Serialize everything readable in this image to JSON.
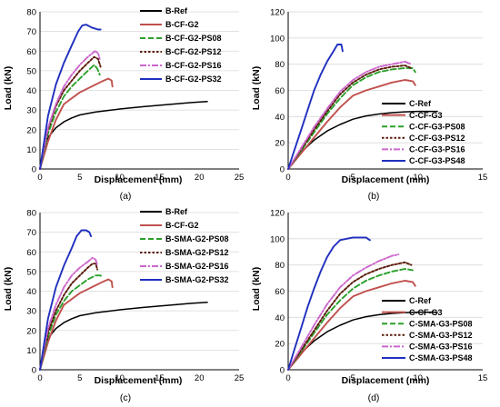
{
  "colors": {
    "black": "#000000",
    "red": "#c0504d",
    "green": "#2ca02c",
    "darkred": "#5a1a0a",
    "pink": "#cc66cc",
    "blue": "#1f2fbf"
  },
  "chart_data": [
    {
      "type": "line",
      "caption": "(a)",
      "xlabel": "Displacement (mm)",
      "ylabel": "Load (kN)",
      "xlim": [
        0,
        25
      ],
      "ylim": [
        0,
        80
      ],
      "xticks": [
        0,
        5,
        10,
        15,
        20,
        25
      ],
      "yticks": [
        0,
        10,
        20,
        30,
        40,
        50,
        60,
        70,
        80
      ],
      "legend_position": "top-right",
      "series": [
        {
          "name": "B-Ref",
          "color": "black",
          "dash": "solid",
          "x": [
            0,
            0.5,
            1,
            2,
            3,
            4,
            5,
            7,
            10,
            13,
            16,
            19,
            21
          ],
          "y": [
            0,
            10,
            16,
            21,
            24,
            26,
            27.5,
            29,
            30.5,
            31.7,
            32.8,
            33.8,
            34.3
          ]
        },
        {
          "name": "B-CF-G2",
          "color": "red",
          "dash": "solid",
          "x": [
            0,
            1,
            2,
            3,
            4,
            5,
            6,
            7,
            8,
            8.6,
            9,
            9.1
          ],
          "y": [
            0,
            14,
            25,
            33,
            36,
            39,
            41,
            43,
            45,
            46,
            45,
            42
          ]
        },
        {
          "name": "B-CF-G2-PS08",
          "color": "green",
          "dash": "dashed",
          "x": [
            0,
            1,
            2,
            3,
            4,
            5,
            6,
            6.8,
            7.2,
            7.5
          ],
          "y": [
            0,
            18,
            29,
            37,
            42,
            46,
            50,
            53,
            51,
            48
          ]
        },
        {
          "name": "B-CF-G2-PS12",
          "color": "darkred",
          "dash": "dotted",
          "x": [
            0,
            1,
            2,
            3,
            4,
            5,
            6,
            6.8,
            7.3,
            7.6
          ],
          "y": [
            0,
            20,
            32,
            40,
            45,
            50,
            54,
            57,
            56,
            52
          ]
        },
        {
          "name": "B-CF-G2-PS16",
          "color": "pink",
          "dash": "dashdot",
          "x": [
            0,
            1,
            2,
            3,
            4,
            5,
            6,
            6.9,
            7.3,
            7.5
          ],
          "y": [
            0,
            21,
            33,
            42,
            48,
            53,
            57,
            60,
            59,
            56
          ]
        },
        {
          "name": "B-CF-G2-PS32",
          "color": "blue",
          "dash": "solid",
          "x": [
            0,
            1,
            2,
            3,
            4,
            4.8,
            5.3,
            5.8,
            6.5,
            7.3,
            7.6
          ],
          "y": [
            0,
            27,
            43,
            54,
            63,
            70,
            73,
            73.5,
            72,
            71,
            71
          ]
        }
      ]
    },
    {
      "type": "line",
      "caption": "(b)",
      "xlabel": "Displacement (mm)",
      "ylabel": "Load (kN)",
      "xlim": [
        0,
        15
      ],
      "ylim": [
        0,
        120
      ],
      "xticks": [
        0,
        5,
        10,
        15
      ],
      "yticks": [
        0,
        20,
        40,
        60,
        80,
        100,
        120
      ],
      "legend_position": "bottom-right",
      "series": [
        {
          "name": "C-Ref",
          "color": "black",
          "dash": "solid",
          "x": [
            0,
            1,
            2,
            3,
            4,
            5,
            6,
            7,
            8,
            9,
            10,
            11.5
          ],
          "y": [
            0,
            13,
            22,
            29,
            34,
            38,
            40.5,
            42,
            43,
            43.6,
            44,
            44
          ]
        },
        {
          "name": "C-CF-G3",
          "color": "red",
          "dash": "solid",
          "x": [
            0,
            1,
            2,
            3,
            4,
            5,
            6,
            7,
            8,
            9,
            9.6,
            9.8
          ],
          "y": [
            0,
            12,
            24,
            36,
            47,
            56,
            60,
            63,
            66,
            68,
            67,
            64
          ]
        },
        {
          "name": "C-CF-G3-PS08",
          "color": "green",
          "dash": "dashed",
          "x": [
            0,
            1,
            2,
            3,
            4,
            5,
            6,
            7,
            8,
            9,
            9.6,
            9.8
          ],
          "y": [
            0,
            14,
            28,
            42,
            54,
            64,
            70,
            74,
            76,
            77,
            77,
            74
          ]
        },
        {
          "name": "C-CF-G3-PS12",
          "color": "darkred",
          "dash": "dotted",
          "x": [
            0,
            1,
            2,
            3,
            4,
            5,
            6,
            7,
            8,
            9,
            9.5
          ],
          "y": [
            0,
            15,
            30,
            44,
            57,
            66,
            72,
            76,
            78,
            79,
            77
          ]
        },
        {
          "name": "C-CF-G3-PS16",
          "color": "pink",
          "dash": "dashdot",
          "x": [
            0,
            1,
            2,
            3,
            4,
            5,
            6,
            7,
            8,
            9,
            9.5
          ],
          "y": [
            0,
            16,
            32,
            46,
            59,
            68,
            74,
            78,
            80,
            82,
            80
          ]
        },
        {
          "name": "C-CF-G3-PS48",
          "color": "blue",
          "dash": "solid",
          "x": [
            0,
            0.5,
            1,
            1.5,
            2,
            2.5,
            3,
            3.5,
            3.8,
            4.1,
            4.2
          ],
          "y": [
            0,
            15,
            30,
            45,
            60,
            72,
            82,
            90,
            95,
            95,
            90
          ]
        }
      ]
    },
    {
      "type": "line",
      "caption": "(c)",
      "xlabel": "Displacement (mm)",
      "ylabel": "Load (kN)",
      "xlim": [
        0,
        25
      ],
      "ylim": [
        0,
        80
      ],
      "xticks": [
        0,
        5,
        10,
        15,
        20,
        25
      ],
      "yticks": [
        0,
        10,
        20,
        30,
        40,
        50,
        60,
        70,
        80
      ],
      "legend_position": "top-right",
      "series": [
        {
          "name": "B-Ref",
          "color": "black",
          "dash": "solid",
          "x": [
            0,
            0.5,
            1,
            2,
            3,
            4,
            5,
            7,
            10,
            13,
            16,
            19,
            21
          ],
          "y": [
            0,
            10,
            16,
            21,
            24,
            26,
            27.5,
            29,
            30.5,
            31.7,
            32.8,
            33.8,
            34.3
          ]
        },
        {
          "name": "B-CF-G2",
          "color": "red",
          "dash": "solid",
          "x": [
            0,
            1,
            2,
            3,
            4,
            5,
            6,
            7,
            8,
            8.6,
            9,
            9.1
          ],
          "y": [
            0,
            14,
            25,
            33,
            36,
            39,
            41,
            43,
            45,
            46,
            45,
            42
          ]
        },
        {
          "name": "B-SMA-G2-PS08",
          "color": "green",
          "dash": "dashed",
          "x": [
            0,
            1,
            2,
            3,
            4,
            5,
            6,
            7,
            7.6,
            7.8
          ],
          "y": [
            0,
            17,
            28,
            35,
            40,
            43,
            46,
            48,
            48,
            47
          ]
        },
        {
          "name": "B-SMA-G2-PS12",
          "color": "darkred",
          "dash": "dotted",
          "x": [
            0,
            1,
            2,
            3,
            4,
            5,
            6,
            6.6,
            7,
            7.2
          ],
          "y": [
            0,
            19,
            30,
            38,
            44,
            48,
            52,
            54,
            54,
            51
          ]
        },
        {
          "name": "B-SMA-G2-PS16",
          "color": "pink",
          "dash": "dashdot",
          "x": [
            0,
            1,
            2,
            3,
            4,
            5,
            6,
            6.6,
            7,
            7.2
          ],
          "y": [
            0,
            21,
            33,
            42,
            48,
            52,
            55,
            57,
            56,
            53
          ]
        },
        {
          "name": "B-SMA-G2-PS32",
          "color": "blue",
          "dash": "solid",
          "x": [
            0,
            1,
            2,
            3,
            4,
            4.6,
            5.2,
            5.8,
            6.2,
            6.4
          ],
          "y": [
            0,
            26,
            42,
            53,
            62,
            68,
            71,
            71,
            70,
            68
          ]
        }
      ]
    },
    {
      "type": "line",
      "caption": "(d)",
      "xlabel": "Displacement (mm)",
      "ylabel": "Load (kN)",
      "xlim": [
        0,
        15
      ],
      "ylim": [
        0,
        120
      ],
      "xticks": [
        0,
        5,
        10,
        15
      ],
      "yticks": [
        0,
        20,
        40,
        60,
        80,
        100,
        120
      ],
      "legend_position": "bottom-right",
      "series": [
        {
          "name": "C-Ref",
          "color": "black",
          "dash": "solid",
          "x": [
            0,
            1,
            2,
            3,
            4,
            5,
            6,
            7,
            8,
            9,
            10,
            11.5
          ],
          "y": [
            0,
            13,
            22,
            29,
            34,
            38,
            40.5,
            42,
            43,
            43.6,
            44,
            44
          ]
        },
        {
          "name": "C-CF-G3",
          "color": "red",
          "dash": "solid",
          "x": [
            0,
            1,
            2,
            3,
            4,
            5,
            6,
            7,
            8,
            9,
            9.6,
            9.8
          ],
          "y": [
            0,
            12,
            24,
            36,
            47,
            56,
            60,
            63,
            66,
            68,
            67,
            64
          ]
        },
        {
          "name": "C-SMA-G3-PS08",
          "color": "green",
          "dash": "dashed",
          "x": [
            0,
            1,
            2,
            3,
            4,
            5,
            6,
            7,
            8,
            9,
            9.6
          ],
          "y": [
            0,
            14,
            28,
            42,
            53,
            62,
            68,
            72,
            75,
            77,
            76
          ]
        },
        {
          "name": "C-SMA-G3-PS12",
          "color": "darkred",
          "dash": "dotted",
          "x": [
            0,
            1,
            2,
            3,
            4,
            5,
            6,
            7,
            8,
            9,
            9.5
          ],
          "y": [
            0,
            15,
            30,
            45,
            58,
            67,
            73,
            77,
            80,
            82,
            80
          ]
        },
        {
          "name": "C-SMA-G3-PS16",
          "color": "pink",
          "dash": "dashdot",
          "x": [
            0,
            1,
            2,
            3,
            4,
            5,
            6,
            7,
            8,
            8.5
          ],
          "y": [
            0,
            17,
            34,
            50,
            63,
            72,
            78,
            83,
            87,
            88
          ]
        },
        {
          "name": "C-SMA-G3-PS48",
          "color": "blue",
          "dash": "solid",
          "x": [
            0,
            0.5,
            1,
            1.5,
            2,
            2.5,
            3,
            3.5,
            4,
            5,
            6,
            6.3
          ],
          "y": [
            0,
            16,
            32,
            48,
            62,
            75,
            86,
            94,
            99,
            101,
            101,
            99
          ]
        }
      ]
    }
  ]
}
